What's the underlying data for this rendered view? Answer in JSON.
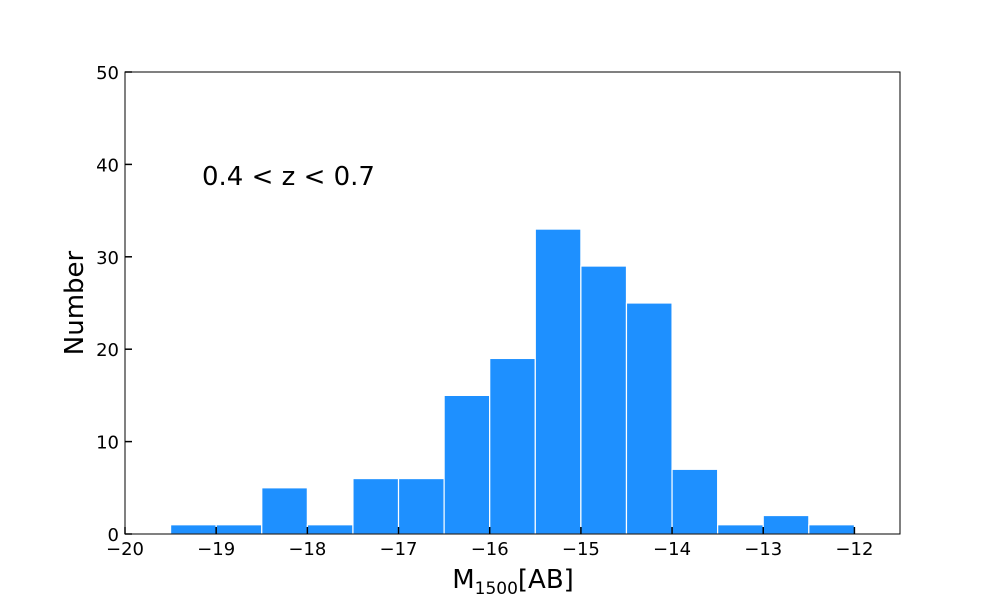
{
  "chart_data": {
    "type": "bar",
    "subtype": "histogram",
    "annotation": "0.4 < z < 0.7",
    "xlabel": {
      "main": "M",
      "subscript": "1500",
      "suffix": "[AB]"
    },
    "ylabel": "Number",
    "xlim": [
      -20,
      -11.5
    ],
    "ylim": [
      0,
      50
    ],
    "xticks": [
      -20,
      -19,
      -18,
      -17,
      -16,
      -15,
      -14,
      -13,
      -12
    ],
    "xtick_labels": [
      "−20",
      "−19",
      "−18",
      "−17",
      "−16",
      "−15",
      "−14",
      "−13",
      "−12"
    ],
    "yticks": [
      0,
      10,
      20,
      30,
      40,
      50
    ],
    "ytick_labels": [
      "0",
      "10",
      "20",
      "30",
      "40",
      "50"
    ],
    "grid": false,
    "legend": "none",
    "bar_color": "#1e90ff",
    "edge_color": "#ffffff",
    "bins": [
      {
        "x0": -19.5,
        "x1": -19.0,
        "count": 1
      },
      {
        "x0": -19.0,
        "x1": -18.5,
        "count": 1
      },
      {
        "x0": -18.5,
        "x1": -18.0,
        "count": 5
      },
      {
        "x0": -18.0,
        "x1": -17.5,
        "count": 1
      },
      {
        "x0": -17.5,
        "x1": -17.0,
        "count": 6
      },
      {
        "x0": -17.0,
        "x1": -16.5,
        "count": 6
      },
      {
        "x0": -16.5,
        "x1": -16.0,
        "count": 15
      },
      {
        "x0": -16.0,
        "x1": -15.5,
        "count": 19
      },
      {
        "x0": -15.5,
        "x1": -15.0,
        "count": 33
      },
      {
        "x0": -15.0,
        "x1": -14.5,
        "count": 29
      },
      {
        "x0": -14.5,
        "x1": -14.0,
        "count": 25
      },
      {
        "x0": -14.0,
        "x1": -13.5,
        "count": 7
      },
      {
        "x0": -13.5,
        "x1": -13.0,
        "count": 1
      },
      {
        "x0": -13.0,
        "x1": -12.5,
        "count": 2
      },
      {
        "x0": -12.5,
        "x1": -12.0,
        "count": 1
      }
    ]
  }
}
